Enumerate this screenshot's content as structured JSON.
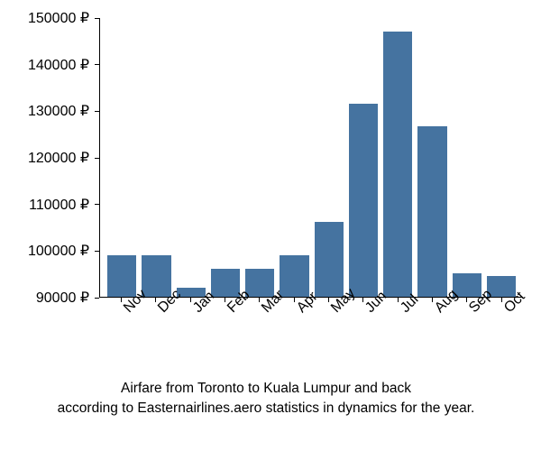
{
  "chart": {
    "type": "bar",
    "categories": [
      "Nov",
      "Dec",
      "Jan",
      "Feb",
      "Mar",
      "Apr",
      "May",
      "Jun",
      "Jul",
      "Aug",
      "Sep",
      "Oct"
    ],
    "values": [
      99000,
      99000,
      92000,
      96000,
      96000,
      99000,
      106000,
      131500,
      147000,
      126500,
      95000,
      94500
    ],
    "bar_color": "#4573a0",
    "ylim_min": 90000,
    "ylim_max": 150000,
    "ytick_step": 10000,
    "ytick_labels": [
      "90000 ₽",
      "100000 ₽",
      "110000 ₽",
      "120000 ₽",
      "130000 ₽",
      "140000 ₽",
      "150000 ₽"
    ],
    "ytick_values": [
      90000,
      100000,
      110000,
      120000,
      130000,
      140000,
      150000
    ],
    "background_color": "#ffffff",
    "axis_color": "#000000",
    "label_color": "#000000",
    "label_fontsize": 16,
    "caption_fontsize": 15.5,
    "bar_width_ratio": 0.8
  },
  "caption": {
    "line1": "Airfare from Toronto to Kuala Lumpur and back",
    "line2": "according to Easternairlines.aero statistics in dynamics for the year."
  }
}
